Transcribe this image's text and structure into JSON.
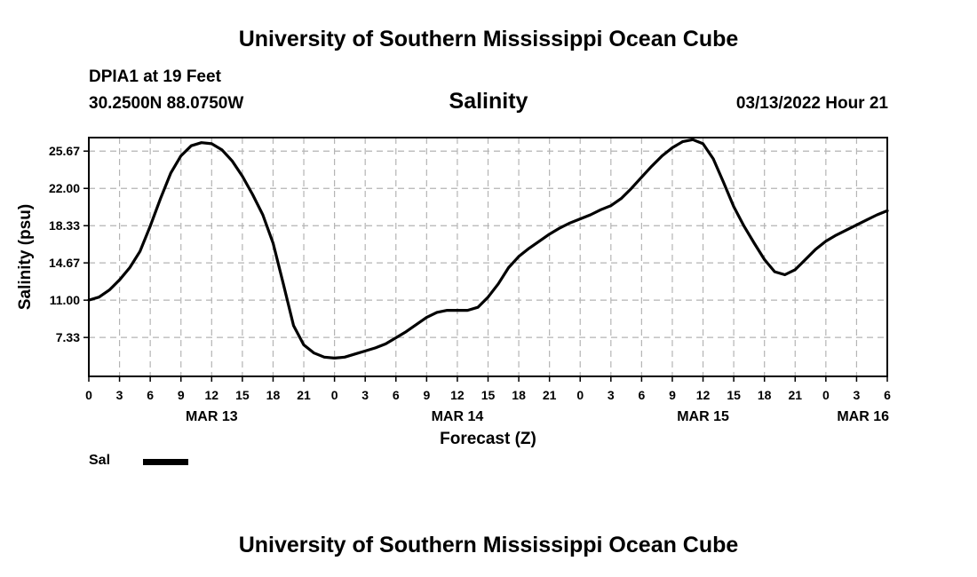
{
  "page": {
    "top_title": "University of Southern Mississippi Ocean Cube",
    "bottom_title": "University of Southern Mississippi Ocean Cube",
    "station": "DPIA1 at 19 Feet",
    "coordinates": "30.2500N  88.0750W",
    "datetime": "03/13/2022 Hour 21"
  },
  "chart_data": {
    "type": "line",
    "title": "Salinity",
    "ylabel": "Salinity (psu)",
    "xlabel": "Forecast (Z)",
    "ylim": [
      3.5,
      27.0
    ],
    "xlim": [
      0,
      78
    ],
    "grid": true,
    "yticks": [
      7.33,
      11.0,
      14.67,
      18.33,
      22.0,
      25.67
    ],
    "ytick_labels": [
      "7.33",
      "11.00",
      "14.67",
      "18.33",
      "22.00",
      "25.67"
    ],
    "xticks": [
      0,
      3,
      6,
      9,
      12,
      15,
      18,
      21,
      24,
      27,
      30,
      33,
      36,
      39,
      42,
      45,
      48,
      51,
      54,
      57,
      60,
      63,
      66,
      69,
      72,
      75,
      78
    ],
    "xtick_labels": [
      "0",
      "3",
      "6",
      "9",
      "12",
      "15",
      "18",
      "21",
      "0",
      "3",
      "6",
      "9",
      "12",
      "15",
      "18",
      "21",
      "0",
      "3",
      "6",
      "9",
      "12",
      "15",
      "18",
      "21",
      "0",
      "3",
      "6"
    ],
    "day_labels": [
      {
        "hour": 12,
        "label": "MAR 13"
      },
      {
        "hour": 36,
        "label": "MAR 14"
      },
      {
        "hour": 60,
        "label": "MAR 15"
      },
      {
        "hour": 78,
        "label": "MAR 16"
      }
    ],
    "legend": [
      {
        "name": "Sal",
        "color": "#000000"
      }
    ],
    "series": [
      {
        "name": "Sal",
        "x": [
          0,
          1,
          2,
          3,
          4,
          5,
          6,
          7,
          8,
          9,
          10,
          11,
          12,
          13,
          14,
          15,
          16,
          17,
          18,
          19,
          20,
          21,
          22,
          23,
          24,
          25,
          26,
          27,
          28,
          29,
          30,
          31,
          32,
          33,
          34,
          35,
          36,
          37,
          38,
          39,
          40,
          41,
          42,
          43,
          44,
          45,
          46,
          47,
          48,
          49,
          50,
          51,
          52,
          53,
          54,
          55,
          56,
          57,
          58,
          59,
          60,
          61,
          62,
          63,
          64,
          65,
          66,
          67,
          68,
          69,
          70,
          71,
          72,
          73,
          74,
          75,
          76,
          77,
          78
        ],
        "values": [
          11.0,
          11.3,
          12.0,
          13.0,
          14.2,
          15.8,
          18.3,
          21.0,
          23.5,
          25.2,
          26.2,
          26.5,
          26.4,
          25.8,
          24.7,
          23.2,
          21.4,
          19.4,
          16.6,
          12.6,
          8.5,
          6.6,
          5.8,
          5.4,
          5.3,
          5.4,
          5.7,
          6.0,
          6.3,
          6.7,
          7.3,
          7.9,
          8.6,
          9.3,
          9.8,
          10.0,
          10.0,
          10.0,
          10.3,
          11.3,
          12.6,
          14.2,
          15.3,
          16.1,
          16.8,
          17.5,
          18.1,
          18.6,
          19.0,
          19.4,
          19.9,
          20.3,
          21.0,
          22.0,
          23.1,
          24.2,
          25.2,
          26.0,
          26.6,
          26.8,
          26.4,
          24.9,
          22.6,
          20.2,
          18.3,
          16.6,
          15.0,
          13.8,
          13.5,
          14.0,
          15.0,
          16.0,
          16.8,
          17.4,
          17.9,
          18.4,
          18.9,
          19.4,
          19.8
        ]
      }
    ]
  }
}
